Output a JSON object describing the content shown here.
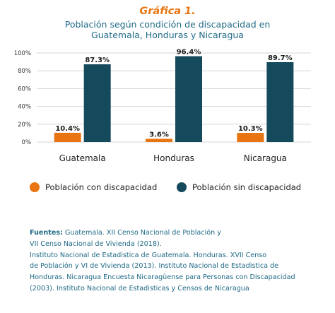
{
  "header": {
    "title": "Gráfica 1.",
    "subtitle_line1": "Población según condición de discapacidad en",
    "subtitle_line2": "Guatemala, Honduras y Nicaragua"
  },
  "colors": {
    "con_discapacidad": "#e87511",
    "sin_discapacidad": "#144a5c",
    "title": "#e87511",
    "subtitle": "#1f6a86",
    "sources": "#1f6a86"
  },
  "chart_data": {
    "type": "bar",
    "title": "",
    "xlabel": "",
    "ylabel": "",
    "categories": [
      "Guatemala",
      "Honduras",
      "Nicaragua"
    ],
    "series": [
      {
        "name": "Población con discapacidad",
        "values": [
          10.4,
          3.6,
          10.3
        ],
        "labels": [
          "10.4%",
          "3.6%",
          "10.3%"
        ],
        "color": "#e87511"
      },
      {
        "name": "Población sin discapacidad",
        "values": [
          87.3,
          96.4,
          89.7
        ],
        "labels": [
          "87.3%",
          "96.4%",
          "89.7%"
        ],
        "color": "#144a5c"
      }
    ],
    "ylim": [
      0,
      100
    ],
    "yticks": [
      0,
      20,
      40,
      60,
      80,
      100
    ],
    "ytick_labels": [
      "0%",
      "20%",
      "40%",
      "60%",
      "80%",
      "100%"
    ],
    "grid": true,
    "legend_position": "bottom"
  },
  "sources": {
    "label": "Fuentes:",
    "lines": [
      " Guatemala. XII Censo Nacional de Población y",
      "VII Censo Nacional de Vivienda (2018).",
      "Instituto Nacional de Estadistica de Guatemala.  Honduras. XVII Censo",
      "de Población y VI de Vivienda (2013). Instituto Nacional de Estadistica de",
      "Honduras. Nicaragua Encuesta Nicaragüense para Personas con Discapacidad",
      "(2003). Instituto Nacional de Estadisticas y Censos de Nicaragua"
    ]
  }
}
